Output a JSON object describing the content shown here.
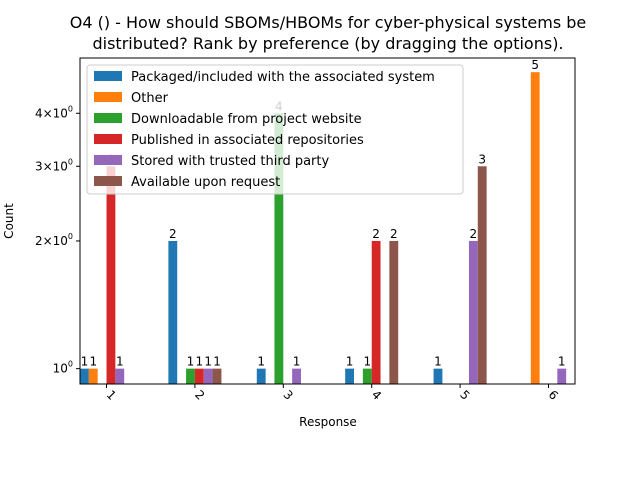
{
  "chart_data": {
    "type": "bar",
    "title_lines": [
      "O4 () - How should SBOMs/HBOMs for cyber-physical systems be",
      "distributed? Rank by preference (by dragging the options)."
    ],
    "xlabel": "Response",
    "ylabel": "Count",
    "yscale": "log",
    "ylim": [
      0.92,
      5.4
    ],
    "yticks": [
      {
        "value": 1,
        "label_base": "10",
        "label_exp": "0"
      },
      {
        "value": 2,
        "label_base": "2×10",
        "label_exp": "0"
      },
      {
        "value": 3,
        "label_base": "3×10",
        "label_exp": "0"
      },
      {
        "value": 4,
        "label_base": "4×10",
        "label_exp": "0"
      }
    ],
    "categories": [
      "1",
      "2",
      "3",
      "4",
      "5",
      "6"
    ],
    "legend_position": "upper-left",
    "series": [
      {
        "name": "Packaged/included with the associated system",
        "color": "#1f77b4",
        "values": [
          1,
          2,
          1,
          1,
          1,
          null
        ]
      },
      {
        "name": "Other",
        "color": "#ff7f0e",
        "values": [
          1,
          null,
          null,
          null,
          null,
          5
        ]
      },
      {
        "name": "Downloadable from project website",
        "color": "#2ca02c",
        "values": [
          null,
          1,
          4,
          1,
          null,
          null
        ]
      },
      {
        "name": "Published in associated repositories",
        "color": "#d62728",
        "values": [
          3,
          1,
          null,
          2,
          null,
          null
        ]
      },
      {
        "name": "Stored with trusted third party",
        "color": "#9467bd",
        "values": [
          1,
          1,
          1,
          null,
          2,
          1
        ]
      },
      {
        "name": "Available upon request",
        "color": "#8c564b",
        "values": [
          null,
          1,
          null,
          2,
          3,
          null
        ]
      }
    ]
  }
}
